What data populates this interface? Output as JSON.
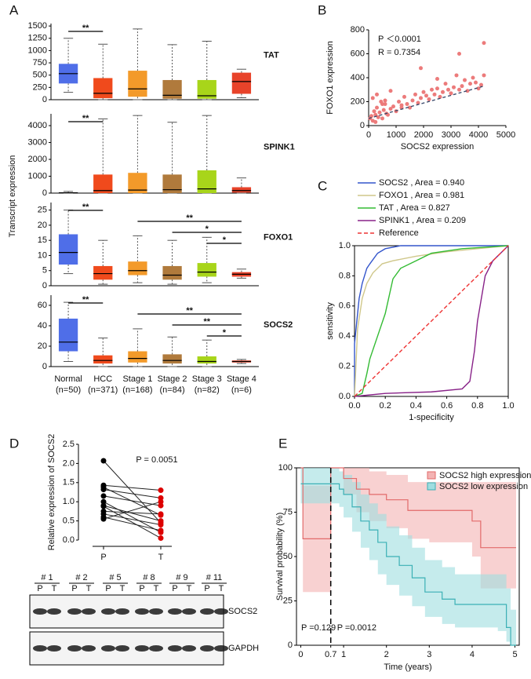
{
  "chart_data": [
    {
      "type": "box",
      "panel": "A",
      "ylabel": "Transcript expression",
      "label": "TAT",
      "colors": [
        "#4f6ee8",
        "#f04a1c",
        "#f39a2a",
        "#b07a3c",
        "#a8d51a",
        "#e8432a"
      ],
      "min": [
        150,
        0,
        0,
        0,
        0,
        40
      ],
      "q1": [
        330,
        30,
        60,
        20,
        20,
        120
      ],
      "median": [
        530,
        130,
        220,
        90,
        80,
        370
      ],
      "q3": [
        730,
        440,
        590,
        400,
        400,
        550
      ],
      "max": [
        1250,
        1130,
        1440,
        1120,
        1190,
        620
      ],
      "ylim": [
        0,
        1550
      ],
      "yticks": [
        0,
        250,
        500,
        750,
        1000,
        1250,
        1500
      ],
      "significance": [
        {
          "from": 0,
          "to": 1,
          "label": "**"
        }
      ]
    },
    {
      "type": "box",
      "label": "SPINK1",
      "colors": [
        "#4f6ee8",
        "#f04a1c",
        "#f39a2a",
        "#b07a3c",
        "#a8d51a",
        "#e8432a"
      ],
      "min": [
        0,
        0,
        0,
        0,
        0,
        0
      ],
      "q1": [
        0,
        0,
        0,
        0,
        0,
        30
      ],
      "median": [
        20,
        150,
        180,
        200,
        250,
        150
      ],
      "q3": [
        40,
        1100,
        1200,
        1100,
        1350,
        350
      ],
      "max": [
        100,
        4400,
        4600,
        4200,
        4600,
        900
      ],
      "ylim": [
        0,
        4700
      ],
      "yticks": [
        0,
        1000,
        2000,
        3000,
        4000
      ],
      "significance": [
        {
          "from": 0,
          "to": 1,
          "label": "**"
        }
      ]
    },
    {
      "type": "box",
      "label": "FOXO1",
      "colors": [
        "#4f6ee8",
        "#f04a1c",
        "#f39a2a",
        "#b07a3c",
        "#a8d51a",
        "#e8432a"
      ],
      "min": [
        4,
        0.5,
        1,
        0.5,
        1,
        2.5
      ],
      "q1": [
        7,
        2,
        3.5,
        2,
        3,
        3
      ],
      "median": [
        11,
        4,
        5,
        3.5,
        4.5,
        3.8
      ],
      "q3": [
        17,
        6.5,
        8,
        6.5,
        7.5,
        4.5
      ],
      "max": [
        25,
        15,
        16.5,
        15,
        16,
        5.5
      ],
      "ylim": [
        0,
        27.5
      ],
      "yticks": [
        0,
        5,
        10,
        15,
        20,
        25
      ],
      "significance": [
        {
          "from": 0,
          "to": 1,
          "label": "**"
        },
        {
          "from": 2,
          "to": 5,
          "label": "**"
        },
        {
          "from": 3,
          "to": 5,
          "label": "*"
        },
        {
          "from": 4,
          "to": 5,
          "label": "*"
        }
      ]
    },
    {
      "type": "box",
      "label": "SOCS2",
      "colors": [
        "#4f6ee8",
        "#f04a1c",
        "#f39a2a",
        "#b07a3c",
        "#a8d51a",
        "#e8432a"
      ],
      "categories": [
        "Normal",
        "HCC",
        "Stage 1",
        "Stage 2",
        "Stage 3",
        "Stage 4"
      ],
      "n_labels": [
        "(n=50)",
        "(n=371)",
        "(n=168)",
        "(n=84)",
        "(n=82)",
        "(n=6)"
      ],
      "min": [
        5,
        0,
        0,
        0,
        0,
        3
      ],
      "q1": [
        15,
        3,
        4,
        3,
        3,
        4
      ],
      "median": [
        24,
        6,
        8,
        6,
        5,
        5
      ],
      "q3": [
        47,
        11,
        15,
        12,
        10,
        6
      ],
      "max": [
        63,
        28,
        37,
        29,
        26,
        7
      ],
      "ylim": [
        0,
        70
      ],
      "yticks": [
        0,
        20,
        40,
        60
      ],
      "significance": [
        {
          "from": 0,
          "to": 1,
          "label": "**"
        },
        {
          "from": 2,
          "to": 5,
          "label": "**"
        },
        {
          "from": 3,
          "to": 5,
          "label": "**"
        },
        {
          "from": 4,
          "to": 5,
          "label": "*"
        }
      ]
    },
    {
      "type": "scatter",
      "panel": "B",
      "xlabel": "SOCS2 expression",
      "ylabel": "FOXO1 expression",
      "annotations": [
        "P ＜0.0001",
        "R = 0.7354"
      ],
      "color": "#ec7b7b",
      "x": [
        50,
        100,
        150,
        200,
        250,
        300,
        350,
        400,
        450,
        500,
        550,
        600,
        650,
        700,
        800,
        900,
        1000,
        1100,
        1200,
        1300,
        1400,
        1500,
        1600,
        1700,
        1800,
        1900,
        2000,
        2100,
        2200,
        2300,
        2400,
        2500,
        2600,
        2700,
        2800,
        2900,
        3000,
        3100,
        3200,
        3300,
        3400,
        3500,
        3600,
        3700,
        3800,
        3900,
        4000,
        4100,
        4200,
        4200,
        150,
        300,
        500,
        800,
        1200,
        2500,
        1900,
        3300,
        250,
        600
      ],
      "y": [
        60,
        80,
        40,
        120,
        90,
        150,
        70,
        110,
        200,
        60,
        130,
        180,
        100,
        90,
        140,
        160,
        120,
        200,
        170,
        240,
        180,
        150,
        210,
        260,
        190,
        230,
        280,
        250,
        220,
        300,
        260,
        310,
        240,
        280,
        350,
        300,
        270,
        320,
        420,
        300,
        330,
        380,
        290,
        350,
        400,
        360,
        310,
        340,
        690,
        420,
        230,
        260,
        180,
        290,
        150,
        390,
        480,
        600,
        30,
        210
      ],
      "trend": {
        "x": [
          0,
          4200
        ],
        "y": [
          60,
          330
        ],
        "color": "#334466"
      },
      "xlim": [
        0,
        5000
      ],
      "ylim": [
        0,
        800
      ],
      "xticks": [
        0,
        1000,
        2000,
        3000,
        4000,
        5000
      ],
      "yticks": [
        0,
        200,
        400,
        600,
        800
      ]
    },
    {
      "type": "line",
      "panel": "C",
      "xlabel": "1-specificity",
      "ylabel": "sensitivity",
      "series": [
        {
          "name": "SOCS2 , Area = 0.940",
          "color": "#3355cc",
          "x": [
            0,
            0,
            0.02,
            0.03,
            0.05,
            0.08,
            0.1,
            0.15,
            0.2,
            0.3,
            0.4,
            0.6,
            0.8,
            1
          ],
          "y": [
            0,
            0.35,
            0.55,
            0.65,
            0.75,
            0.85,
            0.88,
            0.95,
            0.98,
            1,
            1,
            1,
            1,
            1
          ]
        },
        {
          "name": "FOXO1 , Area = 0.981",
          "color": "#cfc78a",
          "x": [
            0,
            0.02,
            0.05,
            0.08,
            0.12,
            0.18,
            0.25,
            0.4,
            0.6,
            0.8,
            1
          ],
          "y": [
            0,
            0.45,
            0.65,
            0.75,
            0.82,
            0.88,
            0.9,
            0.93,
            0.96,
            0.98,
            1
          ]
        },
        {
          "name": "TAT , Area = 0.827",
          "color": "#33bb33",
          "x": [
            0,
            0.05,
            0.08,
            0.1,
            0.15,
            0.2,
            0.25,
            0.3,
            0.4,
            0.5,
            0.7,
            1
          ],
          "y": [
            0,
            0.02,
            0.15,
            0.25,
            0.4,
            0.55,
            0.78,
            0.85,
            0.9,
            0.95,
            0.98,
            1
          ]
        },
        {
          "name": "SPINK1 , Area = 0.209",
          "color": "#882288",
          "x": [
            0,
            0.2,
            0.5,
            0.7,
            0.75,
            0.78,
            0.8,
            0.85,
            0.9,
            0.95,
            1
          ],
          "y": [
            0,
            0.02,
            0.03,
            0.05,
            0.1,
            0.3,
            0.5,
            0.8,
            0.9,
            0.95,
            1
          ]
        },
        {
          "name": "Reference",
          "color": "#ee3333",
          "dash": true,
          "x": [
            0,
            1
          ],
          "y": [
            0,
            1
          ]
        }
      ],
      "xlim": [
        0,
        1
      ],
      "ylim": [
        0,
        1
      ],
      "xticks": [
        {
          "value": 0,
          "label": "0.0"
        },
        0.2,
        0.4,
        0.6,
        0.8,
        {
          "value": 1,
          "label": "1.0"
        }
      ],
      "yticks": [
        {
          "value": 0,
          "label": "0.0"
        },
        0.2,
        0.4,
        0.6,
        0.8,
        {
          "value": 1,
          "label": "1.0"
        }
      ]
    },
    {
      "type": "paired",
      "panel": "D",
      "ylabel": "Relative expression of SOCS2",
      "annotation": "P = 0.0051",
      "series": [
        {
          "name": "P",
          "color": "#000000",
          "values": [
            2.07,
            1.43,
            1.38,
            1.32,
            1.15,
            1.0,
            0.9,
            0.88,
            0.75,
            0.68,
            0.6,
            0.55
          ]
        },
        {
          "name": "T",
          "color": "#dd0000",
          "values": [
            0.45,
            1.3,
            0.65,
            1.1,
            0.9,
            0.2,
            0.5,
            0.05,
            0.68,
            0.4,
            0.25,
            1.0
          ]
        }
      ],
      "ylim": [
        0,
        2.5
      ],
      "yticks": [
        {
          "value": 0,
          "label": "0.0"
        },
        0.5,
        {
          "value": 1,
          "label": "1.0"
        },
        1.5,
        {
          "value": 2,
          "label": "2.0"
        },
        2.5
      ]
    },
    {
      "type": "survival",
      "panel": "E",
      "xlabel": "Time (years)",
      "ylabel": "Survival probability (%)",
      "annotations": [
        "P =0.129",
        "P =0.0012"
      ],
      "cut": 0.7,
      "series": [
        {
          "name": "SOCS2 high expression",
          "color": "#e26a6a",
          "band_color": "#f3b3b3",
          "x": [
            0,
            0.05,
            0.35,
            0.7,
            0.9,
            1.0,
            1.3,
            1.6,
            2.0,
            2.5,
            3.0,
            3.5,
            4.0,
            4.2,
            5.0
          ],
          "y": [
            100,
            60,
            60,
            100,
            100,
            94,
            88,
            85,
            82,
            76,
            76,
            76,
            70,
            55,
            55
          ],
          "lower": [
            100,
            30,
            30,
            100,
            100,
            85,
            75,
            70,
            66,
            60,
            58,
            58,
            50,
            32,
            32
          ],
          "upper": [
            100,
            90,
            90,
            100,
            100,
            100,
            100,
            98,
            96,
            92,
            92,
            92,
            92,
            92,
            92
          ]
        },
        {
          "name": "SOCS2 low expression",
          "color": "#3bb0b5",
          "band_color": "#9fdde0",
          "x": [
            0,
            0.7,
            0.9,
            1.0,
            1.2,
            1.4,
            1.6,
            1.8,
            2.0,
            2.3,
            2.6,
            2.9,
            3.3,
            3.6,
            4.6,
            4.8,
            4.9
          ],
          "y": [
            91,
            91,
            88,
            85,
            78,
            70,
            65,
            58,
            50,
            45,
            38,
            30,
            26,
            23,
            23,
            10,
            0
          ],
          "lower": [
            80,
            80,
            78,
            72,
            64,
            55,
            48,
            40,
            34,
            28,
            22,
            16,
            12,
            10,
            8,
            2,
            0
          ],
          "upper": [
            100,
            100,
            98,
            96,
            92,
            85,
            80,
            74,
            67,
            62,
            55,
            48,
            44,
            40,
            40,
            32,
            20
          ]
        }
      ],
      "xlim": [
        -0.1,
        5.1
      ],
      "ylim": [
        0,
        100
      ],
      "xticks": [
        0,
        0.7,
        1,
        2,
        3,
        4,
        5
      ],
      "yticks": [
        0,
        25,
        50,
        75,
        100
      ]
    }
  ],
  "blot": {
    "samples": [
      "# 1",
      "# 2",
      "# 5",
      "# 8",
      "# 9",
      "# 11"
    ],
    "lanes": [
      "P",
      "T"
    ],
    "proteins": [
      "SOCS2",
      "GAPDH"
    ]
  }
}
